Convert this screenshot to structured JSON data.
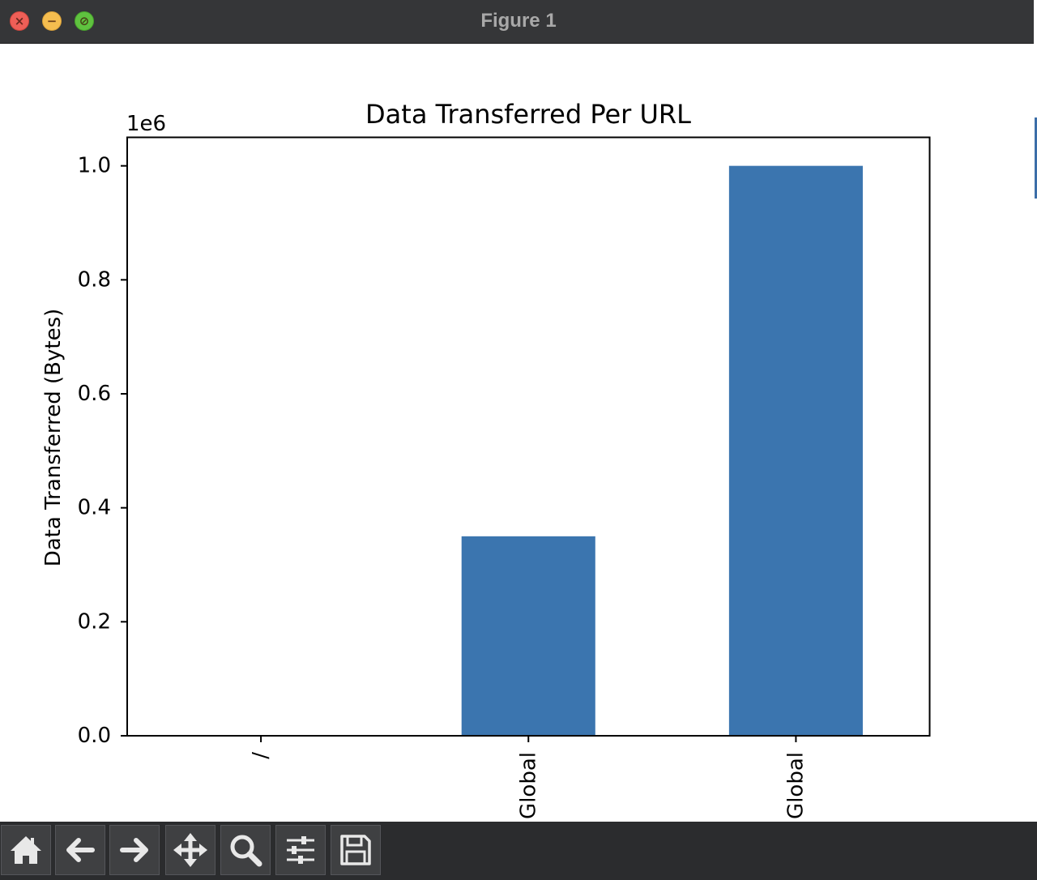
{
  "window": {
    "title": "Figure 1",
    "controls": {
      "close": "close-icon",
      "minimize": "minimize-icon",
      "zoom": "zoom-icon"
    }
  },
  "toolbar": {
    "tools": [
      {
        "icon": "home-icon",
        "tooltip": "Home"
      },
      {
        "icon": "back-arrow-icon",
        "tooltip": "Back"
      },
      {
        "icon": "forward-arrow-icon",
        "tooltip": "Forward"
      },
      {
        "icon": "pan-icon",
        "tooltip": "Pan"
      },
      {
        "icon": "zoom-magnifier-icon",
        "tooltip": "Zoom"
      },
      {
        "icon": "configure-subplots-icon",
        "tooltip": "Subplots"
      },
      {
        "icon": "save-icon",
        "tooltip": "Save"
      }
    ]
  },
  "colors": {
    "bar": "#3b75af",
    "titlebar": "#353638",
    "toolbar": "#2b2c2e"
  },
  "chart_data": {
    "type": "bar",
    "title": "Data Transferred Per URL",
    "xlabel": "",
    "ylabel": "Data Transferred (Bytes)",
    "offset_text": "1e6",
    "categories": [
      "/",
      "Global",
      "Global"
    ],
    "values": [
      0,
      350000,
      1000000
    ],
    "ylim": [
      0,
      1050000
    ],
    "yticks": [
      0,
      200000,
      400000,
      600000,
      800000,
      1000000
    ],
    "ytick_labels": [
      "0.0",
      "0.2",
      "0.4",
      "0.6",
      "0.8",
      "1.0"
    ],
    "xtick_rotation": 90,
    "grid": false,
    "legend": false
  }
}
